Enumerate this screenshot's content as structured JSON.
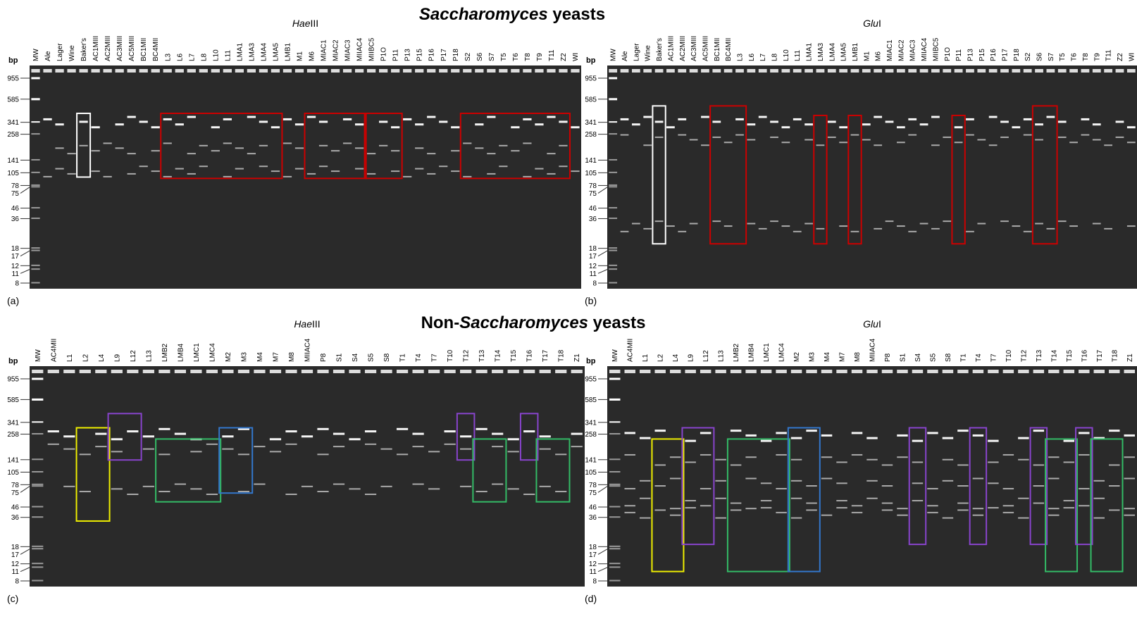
{
  "titles": [
    {
      "parts": [
        {
          "text": "Saccharomyces",
          "italic": true
        },
        {
          "text": " yeasts",
          "italic": false
        }
      ]
    },
    {
      "parts": [
        {
          "text": "Non-",
          "italic": false
        },
        {
          "text": "Saccharomyces",
          "italic": true
        },
        {
          "text": " yeasts",
          "italic": false
        }
      ]
    }
  ],
  "panels": [
    {
      "label": "(a)",
      "enzyme": [
        {
          "text": "Hae",
          "italic": true
        },
        {
          "text": "III",
          "italic": false
        }
      ],
      "bp_label": "bp",
      "ladder": [
        955,
        585,
        341,
        258,
        141,
        105,
        78,
        75,
        46,
        36,
        18,
        17,
        12,
        11,
        8
      ],
      "lanes": [
        "MW",
        "Ale",
        "Lager",
        "Wine",
        "Baker's",
        "AC1MIII",
        "AC2MIII",
        "AC3MIII",
        "AC5MIII",
        "BC1MII",
        "BC4MII",
        "L3",
        "L6",
        "L7",
        "L8",
        "L10",
        "L11",
        "LMA1",
        "LMA3",
        "LMA4",
        "LMA5",
        "LMB1",
        "M1",
        "M6",
        "MIAC1",
        "MIAC2",
        "MIAC3",
        "MIIAC4",
        "MIIBC5",
        "P1O",
        "P11",
        "P13",
        "P15",
        "P16",
        "P17",
        "P18",
        "S2",
        "S6",
        "S7",
        "T5",
        "T6",
        "T8",
        "T9",
        "T11",
        "Z2",
        "WI"
      ]
    },
    {
      "label": "(b)",
      "enzyme": [
        {
          "text": "Glu",
          "italic": true
        },
        {
          "text": "I",
          "italic": false
        }
      ],
      "bp_label": "bp",
      "ladder": [
        955,
        585,
        341,
        258,
        141,
        105,
        78,
        75,
        46,
        36,
        18,
        17,
        12,
        11,
        8
      ],
      "lanes": [
        "MW",
        "Ale",
        "Lager",
        "Wine",
        "Baker's",
        "AC1MIII",
        "AC2MIII",
        "AC3MIII",
        "AC5MIII",
        "BC1MII",
        "BC4MII",
        "L3",
        "L6",
        "L7",
        "L8",
        "L10",
        "L11",
        "LMA1",
        "LMA3",
        "LMA4",
        "LMA5",
        "LMB1",
        "M1",
        "M6",
        "MIAC1",
        "MIAC2",
        "MIAC3",
        "MIIAC4",
        "MIIBC5",
        "P1O",
        "P11",
        "P13",
        "P15",
        "P16",
        "P17",
        "P18",
        "S2",
        "S6",
        "S7",
        "T5",
        "T6",
        "T8",
        "T9",
        "T11",
        "Z2",
        "WI"
      ]
    },
    {
      "label": "(c)",
      "enzyme": [
        {
          "text": "Hae",
          "italic": true
        },
        {
          "text": "III",
          "italic": false
        }
      ],
      "bp_label": "bp",
      "ladder": [
        955,
        585,
        341,
        258,
        141,
        105,
        78,
        75,
        46,
        36,
        18,
        17,
        12,
        11,
        8
      ],
      "lanes": [
        "MW",
        "AC4MII",
        "L1",
        "L2",
        "L4",
        "L9",
        "L12",
        "L13",
        "LMB2",
        "LMB4",
        "LMC1",
        "LMC4",
        "M2",
        "M3",
        "M4",
        "M7",
        "M8",
        "MIIAC4",
        "P8",
        "S1",
        "S4",
        "S5",
        "S8",
        "T1",
        "T4",
        "T7",
        "T10",
        "T12",
        "T13",
        "T14",
        "T15",
        "T16",
        "T17",
        "T18",
        "Z1"
      ]
    },
    {
      "label": "(d)",
      "enzyme": [
        {
          "text": "Glu",
          "italic": true
        },
        {
          "text": "I",
          "italic": false
        }
      ],
      "bp_label": "bp",
      "ladder": [
        955,
        585,
        341,
        258,
        141,
        105,
        78,
        75,
        46,
        36,
        18,
        17,
        12,
        11,
        8
      ],
      "lanes": [
        "MW",
        "AC4MII",
        "L1",
        "L2",
        "L4",
        "L9",
        "L12",
        "L13",
        "LMB2",
        "LMB4",
        "LMC1",
        "LMC4",
        "M2",
        "M3",
        "M4",
        "M7",
        "M8",
        "MIIAC4",
        "P8",
        "S1",
        "S4",
        "S5",
        "S8",
        "T1",
        "T4",
        "T7",
        "T10",
        "T12",
        "T13",
        "T14",
        "T15",
        "T16",
        "T17",
        "T18",
        "Z1"
      ]
    }
  ]
}
